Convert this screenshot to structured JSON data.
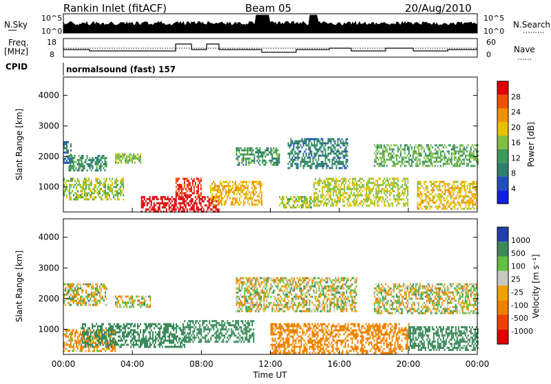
{
  "header": {
    "station": "Rankin Inlet (fitACF)",
    "beam": "Beam 05",
    "date": "20/Aug/2010"
  },
  "top_panels": {
    "nsky_label": "N.Sky",
    "nsky_ticks": [
      "10^5",
      "10^0"
    ],
    "nsearch_label": "N.Search",
    "nsearch_ticks": [
      "10^5",
      "10^0"
    ],
    "freq_label_1": "Freq.",
    "freq_label_2": "[MHz]",
    "freq_ticks": [
      "18",
      "8"
    ],
    "nave_label": "Nave",
    "nave_ticks": [
      "60",
      "0"
    ],
    "cpid_label": "CPID",
    "cpid_text": "normalsound (fast) 157"
  },
  "axes": {
    "ylabel": "Slant Range [km]",
    "yticks": [
      "4000",
      "3000",
      "2000",
      "1000"
    ],
    "xticks": [
      "00:00",
      "04:00",
      "08:00",
      "12:00",
      "16:00",
      "20:00",
      "00:00"
    ],
    "xlabel": "Time UT"
  },
  "power_scale": {
    "label": "Power [dB]",
    "ticks": [
      "28",
      "24",
      "20",
      "16",
      "12",
      "8",
      "4"
    ],
    "colors": [
      "#e00000",
      "#f05000",
      "#f09000",
      "#e8c000",
      "#80c040",
      "#3a9a5a",
      "#2f7f6f",
      "#2050c0",
      "#1020e0"
    ]
  },
  "velocity_scale": {
    "label": "Velocity [m s⁻¹]",
    "ticks": [
      "1000",
      "500",
      "100",
      "25",
      "-25",
      "-100",
      "-500",
      "-1000"
    ],
    "colors": [
      "#2040b0",
      "#3a8a5a",
      "#60c040",
      "#c8c8c0",
      "#f0a000",
      "#f08000",
      "#f04000",
      "#e00000"
    ]
  },
  "chart_data": {
    "type": "heatmap",
    "title": "Rankin Inlet (fitACF)",
    "subtitle": "Beam 05",
    "xlabel": "Time UT",
    "ylabel": "Slant Range [km]",
    "xlim": [
      "00:00",
      "24:00"
    ],
    "ylim": [
      180,
      4600
    ],
    "panels": [
      {
        "name": "Power",
        "unit": "dB",
        "colorbar_ticks": [
          4,
          8,
          12,
          16,
          20,
          24,
          28
        ],
        "regions": [
          {
            "t": [
              0.0,
              0.4
            ],
            "range": [
              1800,
              2500
            ],
            "value": 8
          },
          {
            "t": [
              0.3,
              2.5
            ],
            "range": [
              1550,
              2050
            ],
            "value": 10
          },
          {
            "t": [
              0.0,
              3.5
            ],
            "range": [
              600,
              1300
            ],
            "value": 14
          },
          {
            "t": [
              3.0,
              4.5
            ],
            "range": [
              1800,
              2100
            ],
            "value": 14
          },
          {
            "t": [
              4.5,
              9.0
            ],
            "range": [
              200,
              700
            ],
            "value": 30
          },
          {
            "t": [
              6.5,
              8.0
            ],
            "range": [
              700,
              1300
            ],
            "value": 26
          },
          {
            "t": [
              8.5,
              11.5
            ],
            "range": [
              400,
              1200
            ],
            "value": 18
          },
          {
            "t": [
              10.0,
              12.5
            ],
            "range": [
              1700,
              2300
            ],
            "value": 10
          },
          {
            "t": [
              12.5,
              14.5
            ],
            "range": [
              300,
              700
            ],
            "value": 14
          },
          {
            "t": [
              13.0,
              16.5
            ],
            "range": [
              1600,
              2600
            ],
            "value": 9
          },
          {
            "t": [
              14.5,
              20.0
            ],
            "range": [
              400,
              1300
            ],
            "value": 15
          },
          {
            "t": [
              18.0,
              24.0
            ],
            "range": [
              1700,
              2400
            ],
            "value": 12
          },
          {
            "t": [
              20.5,
              24.0
            ],
            "range": [
              300,
              1200
            ],
            "value": 17
          }
        ]
      },
      {
        "name": "Velocity",
        "unit": "m s-1",
        "colorbar_ticks": [
          -1000,
          -500,
          -100,
          -25,
          25,
          100,
          500,
          1000
        ],
        "regions": [
          {
            "t": [
              0.0,
              2.5
            ],
            "range": [
              1800,
              2500
            ],
            "value": 0
          },
          {
            "t": [
              0.0,
              3.0
            ],
            "range": [
              300,
              1000
            ],
            "value": -100
          },
          {
            "t": [
              1.0,
              7.0
            ],
            "range": [
              400,
              1200
            ],
            "value": 300
          },
          {
            "t": [
              3.0,
              5.0
            ],
            "range": [
              1700,
              2100
            ],
            "value": 0
          },
          {
            "t": [
              7.0,
              11.0
            ],
            "range": [
              600,
              1300
            ],
            "value": 300
          },
          {
            "t": [
              10.0,
              17.0
            ],
            "range": [
              1600,
              2700
            ],
            "value": 0
          },
          {
            "t": [
              12.0,
              20.0
            ],
            "range": [
              250,
              1200
            ],
            "value": -200
          },
          {
            "t": [
              18.0,
              24.0
            ],
            "range": [
              1500,
              2500
            ],
            "value": 0
          },
          {
            "t": [
              20.0,
              24.0
            ],
            "range": [
              300,
              1100
            ],
            "value": 300
          }
        ]
      }
    ]
  }
}
